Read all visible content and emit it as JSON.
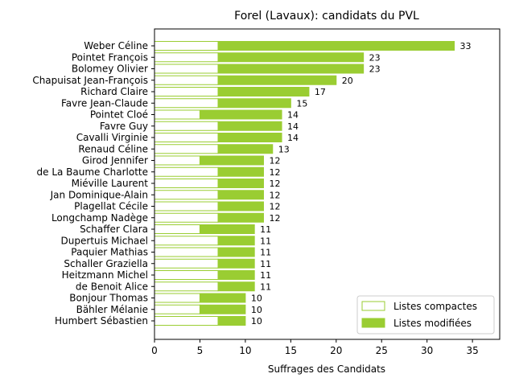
{
  "chart_data": {
    "type": "bar",
    "orientation": "horizontal",
    "stacked": true,
    "title": "Forel (Lavaux): candidats du PVL",
    "xlabel": "Suffrages des Candidats",
    "ylabel": "",
    "xlim": [
      0,
      38
    ],
    "xticks": [
      0,
      5,
      10,
      15,
      20,
      25,
      30,
      35
    ],
    "grid": false,
    "legend_position": "bottom-right",
    "colors": {
      "compactes": "#ffffff",
      "modifiees": "#9acd32",
      "edge": "#9acd32"
    },
    "categories": [
      "Weber Céline",
      "Pointet François",
      "Bolomey Olivier",
      "Chapuisat Jean-François",
      "Richard Claire",
      "Favre Jean-Claude",
      "Pointet Cloé",
      "Favre Guy",
      "Cavalli Virginie",
      "Renaud Céline",
      "Girod Jennifer",
      "de La Baume Charlotte",
      "Miéville Laurent",
      "Jan Dominique-Alain",
      "Plagellat Cécile",
      "Longchamp Nadège",
      "Schaffer Clara",
      "Dupertuis Michael",
      "Paquier Mathias",
      "Schaller Graziella",
      "Heitzmann Michel",
      "de Benoit Alice",
      "Bonjour Thomas",
      "Bähler Mélanie",
      "Humbert Sébastien"
    ],
    "series": [
      {
        "name": "Listes compactes",
        "values": [
          7,
          7,
          7,
          7,
          7,
          7,
          5,
          7,
          7,
          7,
          5,
          7,
          7,
          7,
          7,
          7,
          5,
          7,
          7,
          7,
          7,
          7,
          5,
          5,
          7
        ]
      },
      {
        "name": "Listes modifiées",
        "values": [
          26,
          16,
          16,
          13,
          10,
          8,
          9,
          7,
          7,
          6,
          7,
          5,
          5,
          5,
          5,
          5,
          6,
          4,
          4,
          4,
          4,
          4,
          5,
          5,
          3
        ]
      }
    ],
    "totals": [
      33,
      23,
      23,
      20,
      17,
      15,
      14,
      14,
      14,
      13,
      12,
      12,
      12,
      12,
      12,
      12,
      11,
      11,
      11,
      11,
      11,
      11,
      10,
      10,
      10
    ]
  }
}
